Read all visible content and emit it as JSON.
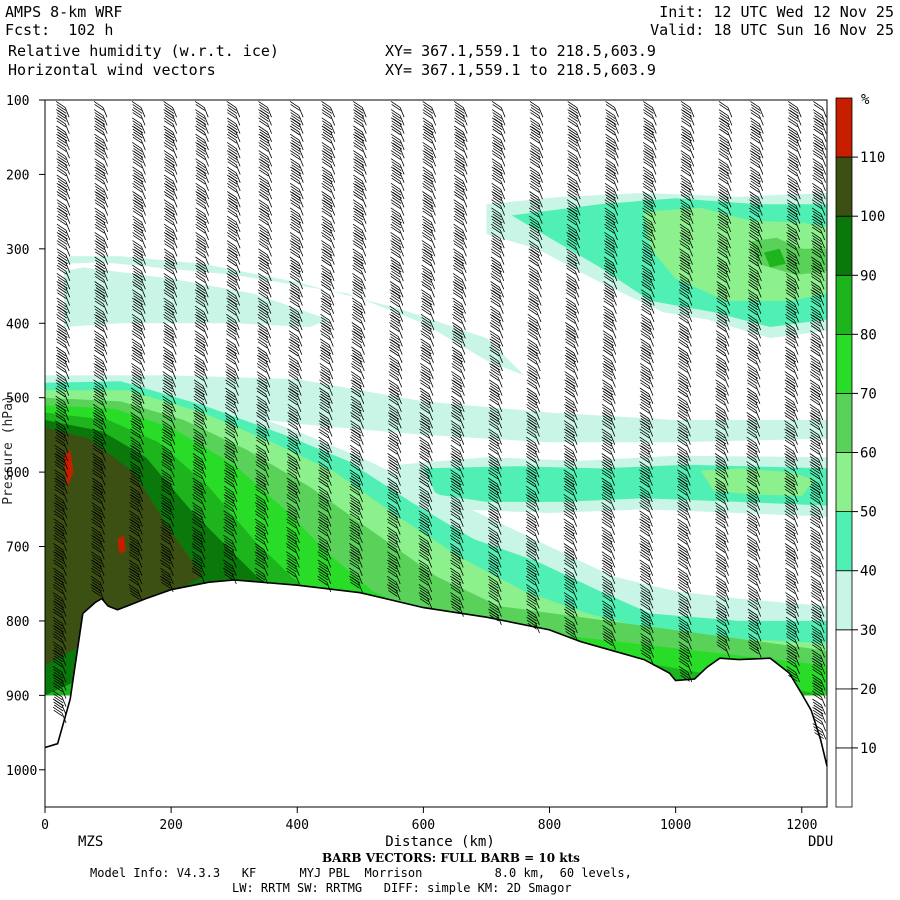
{
  "header": {
    "model": "AMPS 8-km WRF",
    "forecast": "Fcst:  102 h",
    "field": "Relative humidity (w.r.t. ice)",
    "vectors": "Horizontal wind vectors",
    "init": "Init: 12 UTC Wed 12 Nov 25",
    "valid": "Valid: 18 UTC Sun 16 Nov 25",
    "xy1": "XY= 367.1,559.1 to 218.5,603.9",
    "xy2": "XY= 367.1,559.1 to 218.5,603.9"
  },
  "footer": {
    "barb_note": "BARB VECTORS:  FULL BARB = 10 kts",
    "model_info": "Model Info: V4.3.3   KF      MYJ PBL  Morrison          8.0 km,  60 levels,",
    "physics": "LW: RRTM SW: RRTMG   DIFF: simple KM: 2D Smagor"
  },
  "chart_data": {
    "type": "heatmap",
    "title": "Relative humidity (w.r.t. ice) cross section with horizontal wind vectors",
    "xlabel": "Distance (km)",
    "ylabel": "Pressure (hPa)",
    "xlim": [
      0,
      1240
    ],
    "ylim": [
      1050,
      100
    ],
    "x_ticks": [
      "0",
      "200",
      "400",
      "600",
      "800",
      "1000",
      "1200"
    ],
    "y_ticks": [
      "100",
      "200",
      "300",
      "400",
      "500",
      "600",
      "700",
      "800",
      "900",
      "1000"
    ],
    "left_endpoint": "MZS",
    "right_endpoint": "DDU",
    "colorbar": {
      "unit": "%",
      "levels": [
        "10",
        "20",
        "30",
        "40",
        "50",
        "60",
        "70",
        "80",
        "90",
        "100",
        "110"
      ],
      "colors": [
        "#ffffff",
        "#ffffff",
        "#ffffff",
        "#c8f5e6",
        "#50f0b4",
        "#8cf08c",
        "#5ad25a",
        "#28dc28",
        "#1eb41e",
        "#0a780a",
        "#3c5014",
        "#c81e00"
      ]
    },
    "terrain_pressure_hpa": [
      [
        0,
        970
      ],
      [
        20,
        965
      ],
      [
        40,
        905
      ],
      [
        60,
        790
      ],
      [
        80,
        775
      ],
      [
        90,
        770
      ],
      [
        100,
        780
      ],
      [
        115,
        785
      ],
      [
        130,
        780
      ],
      [
        160,
        770
      ],
      [
        200,
        758
      ],
      [
        260,
        748
      ],
      [
        300,
        745
      ],
      [
        400,
        752
      ],
      [
        500,
        762
      ],
      [
        600,
        782
      ],
      [
        700,
        795
      ],
      [
        800,
        812
      ],
      [
        850,
        828
      ],
      [
        900,
        840
      ],
      [
        950,
        852
      ],
      [
        990,
        870
      ],
      [
        1000,
        880
      ],
      [
        1030,
        878
      ],
      [
        1050,
        862
      ],
      [
        1070,
        850
      ],
      [
        1100,
        852
      ],
      [
        1150,
        850
      ],
      [
        1180,
        870
      ],
      [
        1200,
        898
      ],
      [
        1215,
        920
      ],
      [
        1230,
        960
      ],
      [
        1240,
        995
      ]
    ],
    "rh_regions": [
      {
        "level": "30-40",
        "desc": "upper moist band",
        "x": [
          30,
          560
        ],
        "p": [
          330,
          400
        ]
      },
      {
        "level": "30-40",
        "desc": "mid moist band",
        "x": [
          300,
          1200
        ],
        "p": [
          480,
          540
        ]
      },
      {
        "level": "40-90",
        "desc": "upper-right cloud",
        "x": [
          700,
          1240
        ],
        "p": [
          270,
          400
        ]
      },
      {
        "level": "40-70",
        "desc": "mid-level band right",
        "x": [
          560,
          1240
        ],
        "p": [
          590,
          660
        ]
      },
      {
        "level": "70-110",
        "desc": "lower-left saturated layer",
        "x": [
          0,
          400
        ],
        "p": [
          480,
          760
        ]
      },
      {
        "level": "60-90",
        "desc": "low-level moist layer",
        "x": [
          300,
          1100
        ],
        "p": [
          620,
          830
        ]
      }
    ],
    "barb_columns_km": [
      30,
      90,
      150,
      200,
      250,
      300,
      350,
      400,
      450,
      500,
      560,
      610,
      660,
      720,
      780,
      840,
      900,
      960,
      1020,
      1080,
      1130,
      1190,
      1230
    ]
  }
}
